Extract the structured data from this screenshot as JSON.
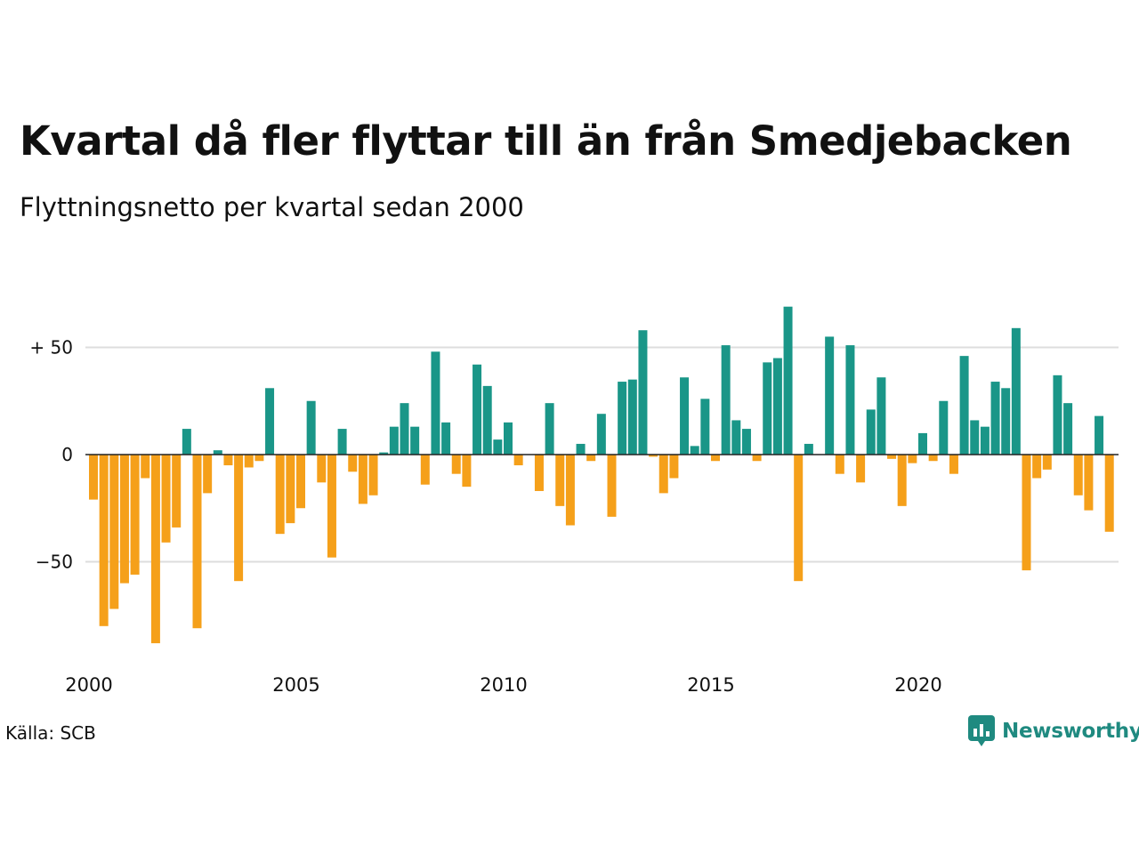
{
  "title": "Kvartal då fler flyttar till än från Smedjebacken",
  "subtitle": "Flyttningsnetto per kvartal sedan 2000",
  "source": "Källa: SCB",
  "brand": "Newsworthy",
  "colors": {
    "positive": "#1a9688",
    "negative": "#f5a01a",
    "grid": "#dddddd",
    "brand": "#1f8a80"
  },
  "chart_data": {
    "type": "bar",
    "start_year": 2000,
    "x_ticks": [
      "2000",
      "2005",
      "2010",
      "2015",
      "2020"
    ],
    "y_ticks": [
      {
        "value": 50,
        "label": "+ 50"
      },
      {
        "value": 0,
        "label": "0"
      },
      {
        "value": -50,
        "label": "−50"
      }
    ],
    "ylim": [
      -90,
      70
    ],
    "values": [
      -21,
      -80,
      -72,
      -60,
      -56,
      -11,
      -88,
      -41,
      -34,
      12,
      -81,
      -18,
      2,
      -5,
      -59,
      -6,
      -3,
      31,
      -37,
      -32,
      -25,
      25,
      -13,
      -48,
      12,
      -8,
      -23,
      -19,
      1,
      13,
      24,
      13,
      -14,
      48,
      15,
      -9,
      -15,
      42,
      32,
      7,
      15,
      -5,
      0,
      -17,
      24,
      -24,
      -33,
      5,
      -3,
      19,
      -29,
      34,
      35,
      58,
      -1,
      -18,
      -11,
      36,
      4,
      26,
      -3,
      51,
      16,
      12,
      -3,
      43,
      45,
      69,
      -59,
      5,
      0,
      55,
      -9,
      51,
      -13,
      21,
      36,
      -2,
      -24,
      -4,
      10,
      -3,
      25,
      -9,
      46,
      16,
      13,
      34,
      31,
      59,
      -54,
      -11,
      -7,
      37,
      24,
      -19,
      -26,
      18,
      -36
    ]
  }
}
